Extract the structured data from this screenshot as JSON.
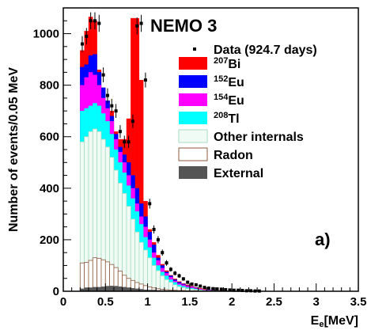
{
  "chart_data": {
    "type": "bar",
    "subtype": "stacked-histogram-with-data-points",
    "title": "NEMO 3",
    "panel_label": "a)",
    "xlabel": {
      "base": "E",
      "sub": "e",
      "unit": "[MeV]"
    },
    "ylabel": "Number of events/0.05 MeV",
    "xlim": [
      0,
      3.5
    ],
    "ylim": [
      0,
      1100
    ],
    "xticks": [
      0,
      0.5,
      1,
      1.5,
      2,
      2.5,
      3,
      3.5
    ],
    "xtick_labels": [
      "0",
      "0.5",
      "1",
      "1.5",
      "2",
      "2.5",
      "3",
      "3.5"
    ],
    "yticks": [
      0,
      200,
      400,
      600,
      800,
      1000
    ],
    "ytick_labels": [
      "0",
      "200",
      "400",
      "600",
      "800",
      "1000"
    ],
    "bin_width": 0.05,
    "bin_edges_start": 0.2,
    "legend_position": "top-right",
    "legend": [
      {
        "key": "data",
        "label": "Data (924.7 days)",
        "style": "marker",
        "color": "#000000"
      },
      {
        "key": "bi207",
        "label_sup": "207",
        "label": "Bi",
        "style": "fill",
        "color": "#ff0000"
      },
      {
        "key": "eu152",
        "label_sup": "152",
        "label": "Eu",
        "style": "fill",
        "color": "#0000ff"
      },
      {
        "key": "eu154",
        "label_sup": "154",
        "label": "Eu",
        "style": "fill",
        "color": "#ff00ff"
      },
      {
        "key": "tl208",
        "label_sup": "208",
        "label": "Tl",
        "style": "fill",
        "color": "#00ffff"
      },
      {
        "key": "other",
        "label": "Other internals",
        "style": "outline",
        "color": "#a7dcc3",
        "fill": "#f1fbf6"
      },
      {
        "key": "radon",
        "label": "Radon",
        "style": "outline",
        "color": "#8b5a3c",
        "fill": "#ffffff"
      },
      {
        "key": "external",
        "label": "External",
        "style": "fill",
        "color": "#555555"
      }
    ],
    "stacks": {
      "external": [
        10,
        14,
        14,
        16,
        16,
        18,
        20,
        21,
        20,
        18,
        16,
        14,
        12,
        10,
        8,
        6,
        5,
        5,
        4,
        4,
        3,
        3,
        3,
        2,
        2,
        2,
        2,
        1,
        1,
        1,
        1,
        1,
        1,
        1,
        1,
        1,
        1,
        1,
        1,
        1,
        0
      ],
      "radon": [
        110,
        112,
        120,
        130,
        128,
        122,
        114,
        104,
        92,
        78,
        62,
        50,
        42,
        34,
        28,
        22,
        17,
        13,
        10,
        8,
        6,
        5,
        4,
        3,
        3,
        2,
        2,
        2,
        1,
        1,
        1,
        1,
        1,
        1,
        1,
        0,
        0,
        0,
        0,
        0,
        0
      ],
      "other": [
        580,
        600,
        620,
        630,
        620,
        590,
        560,
        520,
        470,
        420,
        380,
        330,
        280,
        230,
        190,
        160,
        130,
        100,
        80,
        60,
        45,
        35,
        25,
        18,
        14,
        10,
        8,
        6,
        4,
        3,
        2,
        1,
        1,
        1,
        1,
        0,
        0,
        0,
        0,
        0,
        0
      ],
      "tl208": [
        700,
        710,
        720,
        730,
        720,
        690,
        660,
        610,
        550,
        500,
        460,
        410,
        360,
        310,
        260,
        210,
        170,
        130,
        100,
        75,
        60,
        45,
        35,
        25,
        20,
        15,
        12,
        9,
        6,
        4,
        3,
        2,
        2,
        1,
        1,
        1,
        1,
        0,
        0,
        0,
        0
      ],
      "eu154": [
        800,
        830,
        850,
        840,
        800,
        750,
        710,
        660,
        590,
        540,
        500,
        450,
        400,
        340,
        290,
        250,
        200,
        150,
        120,
        90,
        70,
        55,
        40,
        30,
        25,
        20,
        16,
        11,
        8,
        5,
        4,
        3,
        2,
        2,
        1,
        1,
        1,
        0,
        0,
        0,
        0
      ],
      "eu152": [
        870,
        880,
        915,
        920,
        850,
        790,
        740,
        680,
        610,
        560,
        530,
        500,
        450,
        400,
        340,
        290,
        230,
        180,
        130,
        100,
        75,
        60,
        45,
        35,
        28,
        22,
        18,
        13,
        9,
        6,
        5,
        4,
        3,
        2,
        2,
        1,
        1,
        1,
        0,
        0,
        0
      ],
      "bi207": [
        935,
        1010,
        1065,
        1050,
        860,
        790,
        740,
        700,
        620,
        590,
        590,
        670,
        1060,
        1060,
        820,
        350,
        240,
        190,
        140,
        105,
        80,
        62,
        48,
        38,
        30,
        25,
        20,
        15,
        11,
        8,
        6,
        5,
        4,
        3,
        3,
        2,
        2,
        1,
        1,
        1,
        0
      ]
    },
    "data_points": {
      "x": [
        0.225,
        0.275,
        0.325,
        0.375,
        0.425,
        0.475,
        0.525,
        0.575,
        0.625,
        0.675,
        0.725,
        0.775,
        0.825,
        0.875,
        0.925,
        0.975,
        1.025,
        1.075,
        1.125,
        1.175,
        1.225,
        1.275,
        1.325,
        1.375,
        1.425,
        1.475,
        1.525,
        1.575,
        1.625,
        1.675,
        1.725,
        1.775,
        1.825,
        1.875,
        1.925,
        1.975,
        2.025,
        2.075,
        2.125,
        2.175,
        2.225,
        2.275,
        2.325
      ],
      "y": [
        960,
        990,
        1050,
        1050,
        1040,
        840,
        760,
        720,
        700,
        620,
        580,
        580,
        660,
        1030,
        1040,
        820,
        340,
        240,
        200,
        150,
        110,
        85,
        70,
        60,
        48,
        35,
        28,
        25,
        20,
        15,
        12,
        10,
        9,
        8,
        6,
        5,
        4,
        4,
        3,
        2,
        2,
        1,
        1
      ],
      "err": [
        31,
        32,
        33,
        33,
        33,
        29,
        28,
        27,
        27,
        25,
        24,
        24,
        26,
        33,
        33,
        29,
        19,
        16,
        14,
        12,
        11,
        9,
        9,
        8,
        7,
        6,
        6,
        5,
        5,
        4,
        4,
        3,
        3,
        3,
        3,
        3,
        2,
        2,
        2,
        2,
        2,
        1,
        1
      ]
    }
  }
}
